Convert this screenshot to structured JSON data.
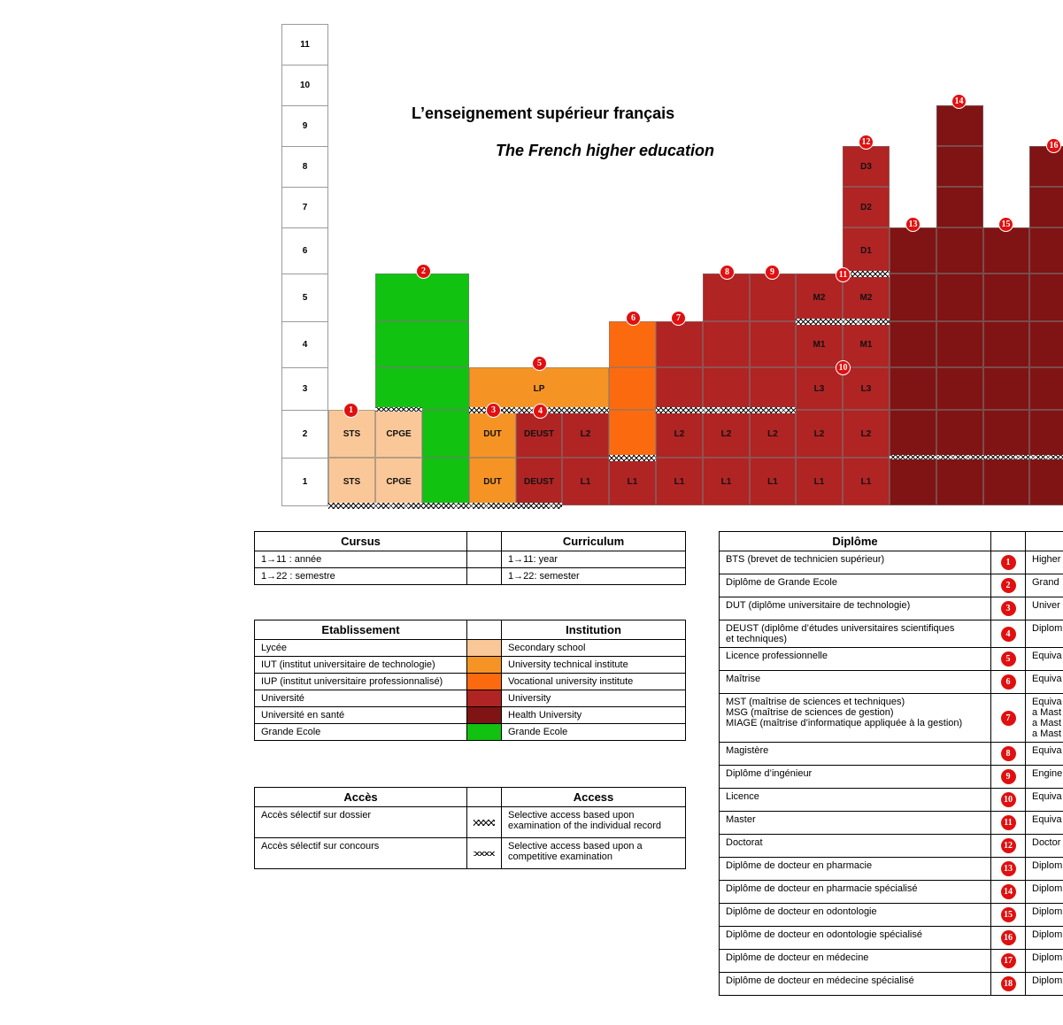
{
  "title_fr": "L’enseignement supérieur français",
  "title_en": "The French higher education",
  "colors": {
    "lycee": "#fac898",
    "iut": "#f59425",
    "iup": "#fc6a10",
    "universite": "#b02424",
    "universite_sante": "#801414",
    "grande_ecole": "#11c211"
  },
  "year_axis": [
    "1",
    "2",
    "3",
    "4",
    "5",
    "6",
    "7",
    "8",
    "9",
    "10",
    "11"
  ],
  "cell_labels": {
    "sts": "STS",
    "cpge": "CPGE",
    "dut": "DUT",
    "deust": "DEUST",
    "lp": "LP",
    "l1": "L1",
    "l2": "L2",
    "l3": "L3",
    "m1": "M1",
    "m2": "M2",
    "d1": "D1",
    "d2": "D2",
    "d3": "D3"
  },
  "badges": [
    "1",
    "2",
    "3",
    "4",
    "5",
    "6",
    "7",
    "8",
    "9",
    "10",
    "11",
    "12",
    "13",
    "14",
    "15",
    "16",
    "17",
    "18"
  ],
  "cursus_table": {
    "header_fr": "Cursus",
    "header_en": "Curriculum",
    "rows": [
      {
        "fr": "1→11 : année",
        "en": "1→11: year"
      },
      {
        "fr": "1→22 : semestre",
        "en": "1→22: semester"
      }
    ]
  },
  "etablissement_table": {
    "header_fr": "Etablissement",
    "header_en": "Institution",
    "rows": [
      {
        "fr": "Lycée",
        "en": "Secondary school",
        "color": "#fac898"
      },
      {
        "fr": "IUT (institut universitaire de technologie)",
        "en": "University technical institute",
        "color": "#f59425"
      },
      {
        "fr": "IUP (institut universitaire professionnalisé)",
        "en": "Vocational university institute",
        "color": "#fc6a10"
      },
      {
        "fr": "Université",
        "en": "University",
        "color": "#b02424"
      },
      {
        "fr": "Université en santé",
        "en": "Health University",
        "color": "#801414"
      },
      {
        "fr": "Grande Ecole",
        "en": "Grande Ecole",
        "color": "#11c211"
      }
    ]
  },
  "acces_table": {
    "header_fr": "Accès",
    "header_en": "Access",
    "rows": [
      {
        "fr": "Accès sélectif sur dossier",
        "en1": "Selective access based upon",
        "en2": "examination of the individual record",
        "symbol": "double-wave"
      },
      {
        "fr": "Accès sélectif sur concours",
        "en1": "Selective access based upon a",
        "en2": "competitive examination",
        "symbol": "single-wave"
      }
    ]
  },
  "diplome_table": {
    "header_fr": "Diplôme",
    "rows": [
      {
        "n": "1",
        "fr": "BTS (brevet de technicien supérieur)",
        "en": "Higher"
      },
      {
        "n": "2",
        "fr": "Diplôme de Grande Ecole",
        "en": "Grand"
      },
      {
        "n": "3",
        "fr": "DUT (diplôme universitaire de technologie)",
        "en": "Univer"
      },
      {
        "n": "4",
        "fr": "DEUST (diplôme d’études universitaires scientifiques",
        "fr2": "et techniques)",
        "en": "Diplom"
      },
      {
        "n": "5",
        "fr": "Licence professionnelle",
        "en": "Equiva"
      },
      {
        "n": "6",
        "fr": "Maîtrise",
        "en": "Equiva"
      },
      {
        "n": "7",
        "fr": "MST (maîtrise de sciences et techniques)",
        "fr2": "MSG (maîtrise de sciences de gestion)",
        "fr3": "MIAGE (maîtrise d’informatique appliquée à la gestion)",
        "en": "Equiva",
        "en2": "a Mast",
        "en3": "a Mast",
        "en4": "a Mast"
      },
      {
        "n": "8",
        "fr": "Magistère",
        "en": "Equiva"
      },
      {
        "n": "9",
        "fr": "Diplôme d’ingénieur",
        "en": "Engine"
      },
      {
        "n": "10",
        "fr": "Licence",
        "en": "Equiva"
      },
      {
        "n": "11",
        "fr": "Master",
        "en": "Equiva"
      },
      {
        "n": "12",
        "fr": "Doctorat",
        "en": "Doctor"
      },
      {
        "n": "13",
        "fr": "Diplôme de docteur en pharmacie",
        "en": "Diplom"
      },
      {
        "n": "14",
        "fr": "Diplôme de docteur en pharmacie spécialisé",
        "en": "Diplom"
      },
      {
        "n": "15",
        "fr": "Diplôme de docteur en odontologie",
        "en": "Diplom"
      },
      {
        "n": "16",
        "fr": "Diplôme de docteur en odontologie spécialisé",
        "en": "Diplom"
      },
      {
        "n": "17",
        "fr": "Diplôme de docteur en médecine",
        "en": "Diplom"
      },
      {
        "n": "18",
        "fr": "Diplôme de docteur en médecine spécialisé",
        "en": "Diplom"
      }
    ]
  }
}
